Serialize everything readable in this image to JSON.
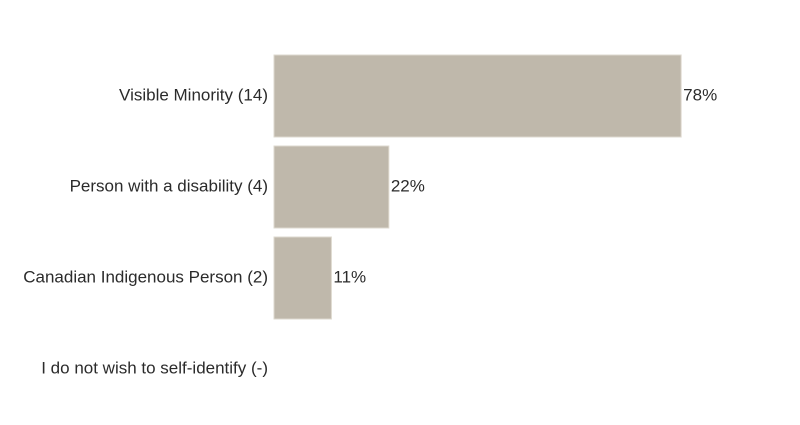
{
  "chart_data": {
    "type": "bar",
    "orientation": "horizontal",
    "categories": [
      "Visible Minority (14)",
      "Person with a disability (4)",
      "Canadian Indigenous Person (2)",
      "I do not wish to self-identify (-)"
    ],
    "values": [
      78,
      22,
      11,
      null
    ],
    "value_labels": [
      "78%",
      "22%",
      "11%",
      ""
    ],
    "unit": "%",
    "xlim": [
      0,
      100
    ],
    "grid": false,
    "legend": "none",
    "bar_color": "#bfb8ab"
  }
}
